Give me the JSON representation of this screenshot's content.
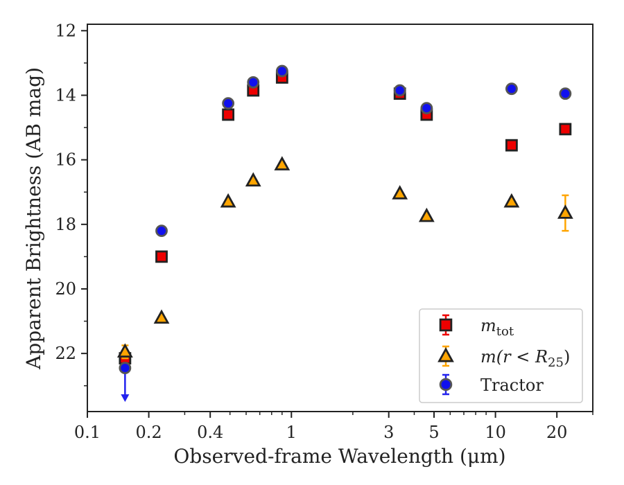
{
  "chart_data": {
    "type": "scatter",
    "title": "",
    "xlabel": "Observed-frame Wavelength (μm)",
    "ylabel": "Apparent Brightness (AB mag)",
    "xscale": "log",
    "xlim": [
      0.1,
      30
    ],
    "ylim": [
      23.8,
      11.8
    ],
    "y_inverted": true,
    "xticks": [
      {
        "value": 0.1,
        "label": "0.1"
      },
      {
        "value": 0.2,
        "label": "0.2"
      },
      {
        "value": 0.4,
        "label": "0.4"
      },
      {
        "value": 1,
        "label": "1"
      },
      {
        "value": 3,
        "label": "3"
      },
      {
        "value": 5,
        "label": "5"
      },
      {
        "value": 10,
        "label": "10"
      },
      {
        "value": 20,
        "label": "20"
      }
    ],
    "xminor": [
      0.3,
      0.5,
      0.6,
      0.7,
      0.8,
      0.9,
      2,
      4,
      6,
      7,
      8,
      9,
      30
    ],
    "yticks": [
      {
        "value": 12,
        "label": "12"
      },
      {
        "value": 14,
        "label": "14"
      },
      {
        "value": 16,
        "label": "16"
      },
      {
        "value": 18,
        "label": "18"
      },
      {
        "value": 20,
        "label": "20"
      },
      {
        "value": 22,
        "label": "22"
      }
    ],
    "yminor": [
      13,
      15,
      17,
      19,
      21,
      23
    ],
    "grid": false,
    "legend_position": "lower-right",
    "series": [
      {
        "key": "m-tot",
        "legend_main": "m",
        "legend_sub": "tot",
        "legend_tail": "",
        "marker": "square",
        "fill": "#ee0000",
        "errcolor": "#ee0000",
        "points": [
          {
            "x": 0.153,
            "y": 22.15,
            "err": 0.15
          },
          {
            "x": 0.231,
            "y": 19.0
          },
          {
            "x": 0.49,
            "y": 14.6
          },
          {
            "x": 0.65,
            "y": 13.85
          },
          {
            "x": 0.9,
            "y": 13.45
          },
          {
            "x": 3.4,
            "y": 13.95
          },
          {
            "x": 4.6,
            "y": 14.6
          },
          {
            "x": 12.0,
            "y": 15.55
          },
          {
            "x": 22.0,
            "y": 15.05
          }
        ]
      },
      {
        "key": "m-r25",
        "legend_main": "m(r < R",
        "legend_sub": "25",
        "legend_tail": ")",
        "marker": "triangle",
        "fill": "#ffa500",
        "errcolor": "#ffa500",
        "points": [
          {
            "x": 0.153,
            "y": 21.95,
            "err": 0.2
          },
          {
            "x": 0.231,
            "y": 20.9
          },
          {
            "x": 0.49,
            "y": 17.3
          },
          {
            "x": 0.65,
            "y": 16.65
          },
          {
            "x": 0.9,
            "y": 16.15
          },
          {
            "x": 3.4,
            "y": 17.05
          },
          {
            "x": 4.6,
            "y": 17.75
          },
          {
            "x": 12.0,
            "y": 17.3
          },
          {
            "x": 22.0,
            "y": 17.65,
            "err": 0.55
          }
        ]
      },
      {
        "key": "tractor",
        "legend_main": "Tractor",
        "legend_sub": "",
        "legend_tail": "",
        "marker": "circle",
        "fill": "#1010ee",
        "errcolor": "#2222ee",
        "points": [
          {
            "x": 0.153,
            "y": 22.45,
            "upper_limit": true
          },
          {
            "x": 0.231,
            "y": 18.2
          },
          {
            "x": 0.49,
            "y": 14.25
          },
          {
            "x": 0.65,
            "y": 13.6
          },
          {
            "x": 0.9,
            "y": 13.25
          },
          {
            "x": 3.4,
            "y": 13.85
          },
          {
            "x": 4.6,
            "y": 14.4
          },
          {
            "x": 12.0,
            "y": 13.8
          },
          {
            "x": 22.0,
            "y": 13.95
          }
        ]
      }
    ]
  }
}
